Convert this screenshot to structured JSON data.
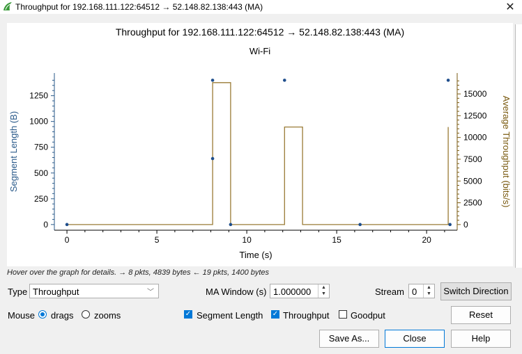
{
  "window": {
    "title": "Throughput for 192.168.111.122:64512 → 52.148.82.138:443 (MA)",
    "close_glyph": "✕"
  },
  "chart_data": {
    "type": "line",
    "title": "Throughput for 192.168.111.122:64512 → 52.148.82.138:443 (MA)",
    "subtitle": "Wi-Fi",
    "xlabel": "Time (s)",
    "ylabel_left": "Segment Length (B)",
    "ylabel_right": "Average Throughput (bits/s)",
    "xlim": [
      -0.7,
      21.7
    ],
    "ylim_left": [
      -55,
      1470
    ],
    "ylim_right": [
      -650,
      17400
    ],
    "x_ticks": [
      0,
      5,
      10,
      15,
      20
    ],
    "y_left_ticks": [
      0,
      250,
      500,
      750,
      1000,
      1250
    ],
    "y_right_ticks": [
      0,
      2500,
      5000,
      7500,
      10000,
      12500,
      15000
    ],
    "colors": {
      "segment": "#1f4e8c",
      "throughput": "#9a7b36",
      "left_axis": "#2a5a8a",
      "right_axis": "#7a5a10"
    },
    "series": [
      {
        "name": "Segment Length",
        "axis": "left",
        "kind": "scatter",
        "points": [
          [
            0,
            0
          ],
          [
            8.1,
            640
          ],
          [
            8.1,
            1400
          ],
          [
            9.1,
            0
          ],
          [
            12.1,
            1400
          ],
          [
            16.3,
            0
          ],
          [
            21.2,
            1400
          ],
          [
            21.3,
            0
          ]
        ]
      },
      {
        "name": "Throughput",
        "axis": "right",
        "kind": "step",
        "points": [
          [
            0,
            0
          ],
          [
            8.1,
            0
          ],
          [
            8.1,
            16300
          ],
          [
            9.1,
            16300
          ],
          [
            9.1,
            0
          ],
          [
            12.1,
            0
          ],
          [
            12.1,
            11200
          ],
          [
            13.1,
            11200
          ],
          [
            13.1,
            0
          ],
          [
            21.2,
            0
          ],
          [
            21.2,
            11200
          ]
        ]
      }
    ]
  },
  "hint": "Hover over the graph for details. → 8 pkts, 4839 bytes ← 19 pkts, 1400 bytes",
  "controls": {
    "type_label": "Type",
    "type_value": "Throughput",
    "ma_window_label": "MA Window (s)",
    "ma_window_value": "1.000000",
    "stream_label": "Stream",
    "stream_value": "0",
    "switch_direction": "Switch Direction",
    "mouse_label": "Mouse",
    "drags_label": "drags",
    "zooms_label": "zooms",
    "segment_length_label": "Segment Length",
    "throughput_label": "Throughput",
    "goodput_label": "Goodput",
    "reset": "Reset",
    "save_as": "Save As...",
    "close": "Close",
    "help": "Help",
    "mouse_mode": "drags",
    "segment_length_checked": true,
    "throughput_checked": true,
    "goodput_checked": false
  }
}
